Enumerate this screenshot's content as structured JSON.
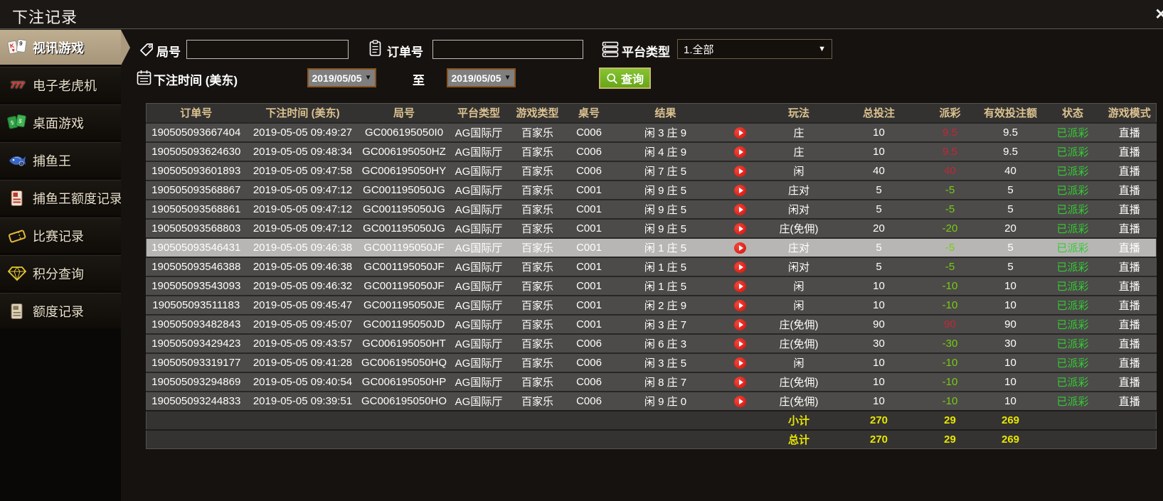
{
  "titlebar": {
    "title": "下注记录",
    "close_label": "✕"
  },
  "sidebar": {
    "items": [
      {
        "label": "视讯游戏",
        "icon": "cards-icon",
        "active": true
      },
      {
        "label": "电子老虎机",
        "icon": "slots-777-icon",
        "active": false
      },
      {
        "label": "桌面游戏",
        "icon": "table-games-icon",
        "active": false
      },
      {
        "label": "捕鱼王",
        "icon": "fish-icon",
        "active": false
      },
      {
        "label": "捕鱼王额度记录",
        "icon": "fish-ledger-icon",
        "active": false
      },
      {
        "label": "比赛记录",
        "icon": "ticket-icon",
        "active": false
      },
      {
        "label": "积分查询",
        "icon": "diamond-icon",
        "active": false
      },
      {
        "label": "额度记录",
        "icon": "ledger-icon",
        "active": false
      }
    ]
  },
  "filters": {
    "round_label": "局号",
    "round_value": "",
    "order_label": "订单号",
    "order_value": "",
    "platform_label": "平台类型",
    "platform_value": "1.全部",
    "bet_time_label": "下注时间 (美东)",
    "date_from": "2019/05/05",
    "date_to": "2019/05/05",
    "to_label": "至",
    "search_label": "查询",
    "caret": "▼"
  },
  "table": {
    "headers": [
      "订单号",
      "下注时间 (美东)",
      "局号",
      "平台类型",
      "游戏类型",
      "桌号",
      "结果",
      "",
      "玩法",
      "总投注",
      "派彩",
      "有效投注额",
      "状态",
      "游戏模式"
    ],
    "rows": [
      {
        "order": "190505093667404",
        "time": "2019-05-05 09:49:27",
        "round": "GC006195050I0",
        "platform": "AG国际厅",
        "game": "百家乐",
        "table_no": "C006",
        "result": "闲 3 庄 9",
        "play_type": "庄",
        "total": "10",
        "payout": "9.5",
        "valid": "9.5",
        "status": "已派彩",
        "mode": "直播",
        "selected": false
      },
      {
        "order": "190505093624630",
        "time": "2019-05-05 09:48:34",
        "round": "GC006195050HZ",
        "platform": "AG国际厅",
        "game": "百家乐",
        "table_no": "C006",
        "result": "闲 4 庄 9",
        "play_type": "庄",
        "total": "10",
        "payout": "9.5",
        "valid": "9.5",
        "status": "已派彩",
        "mode": "直播",
        "selected": false
      },
      {
        "order": "190505093601893",
        "time": "2019-05-05 09:47:58",
        "round": "GC006195050HY",
        "platform": "AG国际厅",
        "game": "百家乐",
        "table_no": "C006",
        "result": "闲 7 庄 5",
        "play_type": "闲",
        "total": "40",
        "payout": "40",
        "valid": "40",
        "status": "已派彩",
        "mode": "直播",
        "selected": false
      },
      {
        "order": "190505093568867",
        "time": "2019-05-05 09:47:12",
        "round": "GC001195050JG",
        "platform": "AG国际厅",
        "game": "百家乐",
        "table_no": "C001",
        "result": "闲 9 庄 5",
        "play_type": "庄对",
        "total": "5",
        "payout": "-5",
        "valid": "5",
        "status": "已派彩",
        "mode": "直播",
        "selected": false
      },
      {
        "order": "190505093568861",
        "time": "2019-05-05 09:47:12",
        "round": "GC001195050JG",
        "platform": "AG国际厅",
        "game": "百家乐",
        "table_no": "C001",
        "result": "闲 9 庄 5",
        "play_type": "闲对",
        "total": "5",
        "payout": "-5",
        "valid": "5",
        "status": "已派彩",
        "mode": "直播",
        "selected": false
      },
      {
        "order": "190505093568803",
        "time": "2019-05-05 09:47:12",
        "round": "GC001195050JG",
        "platform": "AG国际厅",
        "game": "百家乐",
        "table_no": "C001",
        "result": "闲 9 庄 5",
        "play_type": "庄(免佣)",
        "total": "20",
        "payout": "-20",
        "valid": "20",
        "status": "已派彩",
        "mode": "直播",
        "selected": false
      },
      {
        "order": "190505093546431",
        "time": "2019-05-05 09:46:38",
        "round": "GC001195050JF",
        "platform": "AG国际厅",
        "game": "百家乐",
        "table_no": "C001",
        "result": "闲 1 庄 5",
        "play_type": "庄对",
        "total": "5",
        "payout": "-5",
        "valid": "5",
        "status": "已派彩",
        "mode": "直播",
        "selected": true
      },
      {
        "order": "190505093546388",
        "time": "2019-05-05 09:46:38",
        "round": "GC001195050JF",
        "platform": "AG国际厅",
        "game": "百家乐",
        "table_no": "C001",
        "result": "闲 1 庄 5",
        "play_type": "闲对",
        "total": "5",
        "payout": "-5",
        "valid": "5",
        "status": "已派彩",
        "mode": "直播",
        "selected": false
      },
      {
        "order": "190505093543093",
        "time": "2019-05-05 09:46:32",
        "round": "GC001195050JF",
        "platform": "AG国际厅",
        "game": "百家乐",
        "table_no": "C001",
        "result": "闲 1 庄 5",
        "play_type": "闲",
        "total": "10",
        "payout": "-10",
        "valid": "10",
        "status": "已派彩",
        "mode": "直播",
        "selected": false
      },
      {
        "order": "190505093511183",
        "time": "2019-05-05 09:45:47",
        "round": "GC001195050JE",
        "platform": "AG国际厅",
        "game": "百家乐",
        "table_no": "C001",
        "result": "闲 2 庄 9",
        "play_type": "闲",
        "total": "10",
        "payout": "-10",
        "valid": "10",
        "status": "已派彩",
        "mode": "直播",
        "selected": false
      },
      {
        "order": "190505093482843",
        "time": "2019-05-05 09:45:07",
        "round": "GC001195050JD",
        "platform": "AG国际厅",
        "game": "百家乐",
        "table_no": "C001",
        "result": "闲 3 庄 7",
        "play_type": "庄(免佣)",
        "total": "90",
        "payout": "90",
        "valid": "90",
        "status": "已派彩",
        "mode": "直播",
        "selected": false
      },
      {
        "order": "190505093429423",
        "time": "2019-05-05 09:43:57",
        "round": "GC006195050HT",
        "platform": "AG国际厅",
        "game": "百家乐",
        "table_no": "C006",
        "result": "闲 6 庄 3",
        "play_type": "庄(免佣)",
        "total": "30",
        "payout": "-30",
        "valid": "30",
        "status": "已派彩",
        "mode": "直播",
        "selected": false
      },
      {
        "order": "190505093319177",
        "time": "2019-05-05 09:41:28",
        "round": "GC006195050HQ",
        "platform": "AG国际厅",
        "game": "百家乐",
        "table_no": "C006",
        "result": "闲 3 庄 5",
        "play_type": "闲",
        "total": "10",
        "payout": "-10",
        "valid": "10",
        "status": "已派彩",
        "mode": "直播",
        "selected": false
      },
      {
        "order": "190505093294869",
        "time": "2019-05-05 09:40:54",
        "round": "GC006195050HP",
        "platform": "AG国际厅",
        "game": "百家乐",
        "table_no": "C006",
        "result": "闲 8 庄 7",
        "play_type": "庄(免佣)",
        "total": "10",
        "payout": "-10",
        "valid": "10",
        "status": "已派彩",
        "mode": "直播",
        "selected": false
      },
      {
        "order": "190505093244833",
        "time": "2019-05-05 09:39:51",
        "round": "GC006195050HO",
        "platform": "AG国际厅",
        "game": "百家乐",
        "table_no": "C006",
        "result": "闲 9 庄 0",
        "play_type": "庄(免佣)",
        "total": "10",
        "payout": "-10",
        "valid": "10",
        "status": "已派彩",
        "mode": "直播",
        "selected": false
      }
    ],
    "subtotal": {
      "label": "小计",
      "total": "270",
      "payout": "29",
      "valid": "269"
    },
    "total": {
      "label": "总计",
      "total": "270",
      "payout": "29",
      "valid": "269"
    }
  },
  "colors": {
    "active_tab_tan": "#b2a07f",
    "row_gray": "#4c4b49",
    "header_gold": "#dcc291",
    "win_red": "#c22738",
    "loss_green": "#77cc11",
    "status_green": "#33cc33",
    "total_yellow": "#e8e600",
    "search_button_green": "#74b62a",
    "play_icon_red": "#d40f08"
  }
}
